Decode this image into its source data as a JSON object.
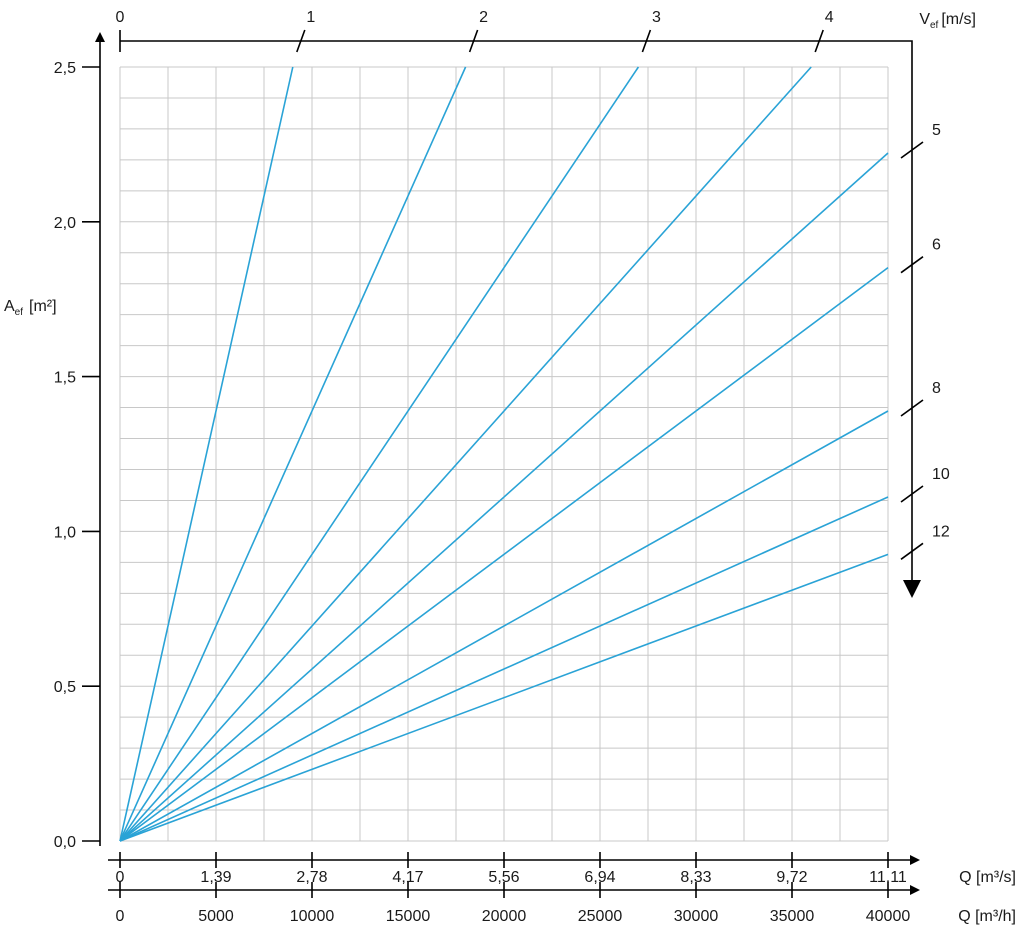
{
  "chart_data": {
    "type": "line",
    "ylabel_main": "A",
    "ylabel_sub": "ef",
    "ylabel_unit": "[m²]",
    "yticks": [
      {
        "v": 0.0,
        "label": "0,0"
      },
      {
        "v": 0.5,
        "label": "0,5"
      },
      {
        "v": 1.0,
        "label": "1,0"
      },
      {
        "v": 1.5,
        "label": "1,5"
      },
      {
        "v": 2.0,
        "label": "2,0"
      },
      {
        "v": 2.5,
        "label": "2,5"
      }
    ],
    "ylim": [
      0,
      2.5
    ],
    "xlim": [
      0,
      40000
    ],
    "x_unit_m3h": "Q [m³/h]",
    "x_unit_m3s": "Q [m³/s]",
    "xticks_m3h": [
      {
        "v": 0,
        "label": "0"
      },
      {
        "v": 5000,
        "label": "5000"
      },
      {
        "v": 10000,
        "label": "10000"
      },
      {
        "v": 15000,
        "label": "15000"
      },
      {
        "v": 20000,
        "label": "20000"
      },
      {
        "v": 25000,
        "label": "25000"
      },
      {
        "v": 30000,
        "label": "30000"
      },
      {
        "v": 35000,
        "label": "35000"
      },
      {
        "v": 40000,
        "label": "40000"
      }
    ],
    "xticks_m3s": [
      {
        "v": 0,
        "label": "0"
      },
      {
        "v": 5000,
        "label": "1,39"
      },
      {
        "v": 10000,
        "label": "2,78"
      },
      {
        "v": 15000,
        "label": "4,17"
      },
      {
        "v": 20000,
        "label": "5,56"
      },
      {
        "v": 25000,
        "label": "6,94"
      },
      {
        "v": 30000,
        "label": "8,33"
      },
      {
        "v": 35000,
        "label": "9,72"
      },
      {
        "v": 40000,
        "label": "11,11"
      }
    ],
    "v_axis_main": "V",
    "v_axis_sub": "ef",
    "v_axis_unit": "[m/s]",
    "v_zero_label": "0",
    "grid": true,
    "series": [
      {
        "name": "1",
        "velocity": 1
      },
      {
        "name": "2",
        "velocity": 2
      },
      {
        "name": "3",
        "velocity": 3
      },
      {
        "name": "4",
        "velocity": 4
      },
      {
        "name": "5",
        "velocity": 5
      },
      {
        "name": "6",
        "velocity": 6
      },
      {
        "name": "8",
        "velocity": 8
      },
      {
        "name": "10",
        "velocity": 10
      },
      {
        "name": "12",
        "velocity": 12
      }
    ],
    "line_color": "#2aa3d6",
    "axis_color": "#000000",
    "grid_color": "#c8c8c8"
  }
}
